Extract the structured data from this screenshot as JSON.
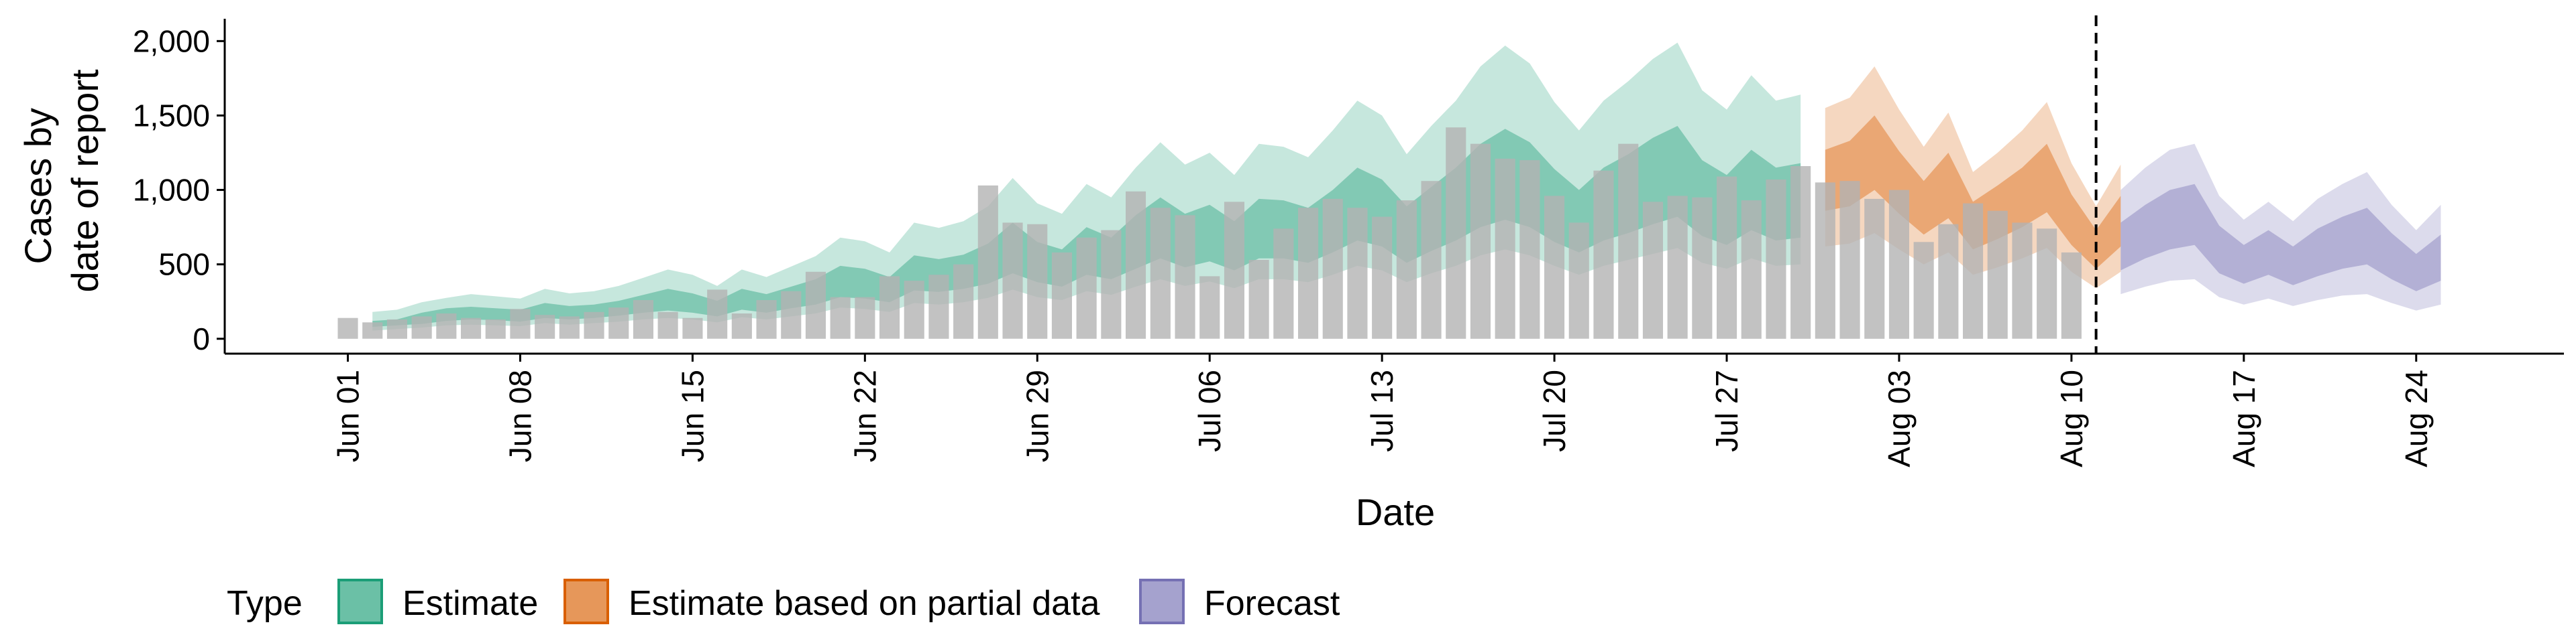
{
  "chart_data": {
    "type": "bar",
    "xlabel": "Date",
    "ylabel_lines": [
      "Cases by",
      "date of report"
    ],
    "ylim": [
      -100,
      2150
    ],
    "y_ticks": [
      0,
      500,
      1000,
      1500,
      2000
    ],
    "y_tick_labels": [
      "0",
      "500",
      "1,000",
      "1,500",
      "2,000"
    ],
    "x_ticks": [
      "2020-06-01",
      "2020-06-08",
      "2020-06-15",
      "2020-06-22",
      "2020-06-29",
      "2020-07-06",
      "2020-07-13",
      "2020-07-20",
      "2020-07-27",
      "2020-08-03",
      "2020-08-10",
      "2020-08-17",
      "2020-08-24"
    ],
    "x_tick_labels": [
      "Jun 01",
      "Jun 08",
      "Jun 15",
      "Jun 22",
      "Jun 29",
      "Jul 06",
      "Jul 13",
      "Jul 20",
      "Jul 27",
      "Aug 03",
      "Aug 10",
      "Aug 17",
      "Aug 24"
    ],
    "xlim": [
      "2020-05-27",
      "2020-08-30"
    ],
    "vline_date": "2020-08-11",
    "grid": false,
    "legend": {
      "position": "bottom",
      "title": "Type",
      "items": [
        {
          "label": "Estimate",
          "color": "#1B9E77"
        },
        {
          "label": "Estimate based on partial data",
          "color": "#D95F02"
        },
        {
          "label": "Forecast",
          "color": "#7570B3"
        }
      ]
    },
    "reported_cases": {
      "start_date": "2020-06-01",
      "color": "#b3b3b3",
      "values": [
        140,
        110,
        130,
        150,
        170,
        140,
        130,
        200,
        160,
        150,
        180,
        210,
        260,
        180,
        140,
        330,
        170,
        260,
        320,
        450,
        280,
        280,
        420,
        390,
        430,
        500,
        1030,
        780,
        770,
        580,
        680,
        730,
        990,
        880,
        830,
        420,
        920,
        530,
        740,
        880,
        940,
        880,
        820,
        930,
        1060,
        1420,
        1310,
        1210,
        1200,
        960,
        780,
        1130,
        1310,
        920,
        960,
        950,
        1090,
        930,
        1070,
        1160,
        1050,
        1060,
        940,
        1000,
        650,
        770,
        910,
        860,
        780,
        740,
        580
      ]
    },
    "series": [
      {
        "name": "Estimate",
        "color": "#1B9E77",
        "start_date": "2020-06-02",
        "median": [
          100,
          110,
          140,
          160,
          170,
          165,
          155,
          190,
          175,
          185,
          205,
          235,
          265,
          245,
          200,
          265,
          235,
          275,
          315,
          390,
          375,
          330,
          445,
          425,
          450,
          510,
          620,
          520,
          470,
          600,
          540,
          660,
          760,
          670,
          720,
          630,
          750,
          740,
          700,
          800,
          920,
          860,
          710,
          820,
          920,
          1050,
          1130,
          1060,
          910,
          800,
          920,
          990,
          1080,
          1150,
          960,
          880,
          1020,
          920,
          940
        ],
        "ci50_low": [
          80,
          90,
          100,
          120,
          130,
          125,
          115,
          140,
          130,
          140,
          155,
          175,
          190,
          175,
          150,
          195,
          175,
          205,
          230,
          280,
          270,
          245,
          325,
          315,
          335,
          370,
          440,
          380,
          350,
          430,
          400,
          470,
          540,
          480,
          520,
          460,
          540,
          540,
          510,
          580,
          660,
          620,
          510,
          590,
          660,
          750,
          800,
          750,
          650,
          580,
          660,
          710,
          770,
          820,
          690,
          630,
          730,
          660,
          680
        ],
        "ci50_high": [
          120,
          130,
          175,
          205,
          215,
          205,
          195,
          240,
          220,
          230,
          255,
          295,
          335,
          305,
          255,
          335,
          300,
          350,
          400,
          490,
          470,
          415,
          560,
          535,
          565,
          640,
          780,
          650,
          600,
          750,
          680,
          830,
          950,
          840,
          900,
          790,
          940,
          930,
          880,
          1000,
          1150,
          1070,
          890,
          1020,
          1150,
          1310,
          1410,
          1320,
          1140,
          1000,
          1150,
          1240,
          1350,
          1430,
          1200,
          1100,
          1270,
          1150,
          1180
        ],
        "ci90_low": [
          55,
          65,
          75,
          90,
          95,
          90,
          85,
          105,
          95,
          105,
          115,
          130,
          140,
          130,
          110,
          145,
          130,
          150,
          170,
          210,
          200,
          180,
          240,
          230,
          245,
          275,
          330,
          280,
          260,
          320,
          295,
          350,
          400,
          355,
          385,
          340,
          400,
          400,
          380,
          430,
          490,
          460,
          380,
          440,
          490,
          560,
          600,
          560,
          490,
          430,
          490,
          530,
          570,
          610,
          510,
          470,
          540,
          490,
          500
        ],
        "ci90_high": [
          180,
          195,
          245,
          275,
          300,
          285,
          270,
          335,
          305,
          320,
          355,
          410,
          465,
          430,
          355,
          465,
          415,
          485,
          555,
          680,
          655,
          580,
          780,
          745,
          790,
          890,
          1080,
          910,
          840,
          1040,
          950,
          1150,
          1320,
          1170,
          1250,
          1100,
          1310,
          1290,
          1220,
          1400,
          1600,
          1500,
          1240,
          1430,
          1600,
          1830,
          1970,
          1850,
          1590,
          1400,
          1600,
          1730,
          1880,
          1990,
          1670,
          1540,
          1770,
          1600,
          1640
        ]
      },
      {
        "name": "Estimate based on partial data",
        "color": "#D95F02",
        "start_date": "2020-07-31",
        "median": [
          1050,
          1100,
          1250,
          1050,
          880,
          1030,
          760,
          850,
          950,
          1080,
          800,
          600,
          790
        ],
        "ci50_low": [
          860,
          890,
          1000,
          840,
          700,
          810,
          600,
          670,
          750,
          850,
          630,
          470,
          620
        ],
        "ci50_high": [
          1270,
          1330,
          1500,
          1260,
          1060,
          1250,
          920,
          1030,
          1150,
          1310,
          970,
          730,
          960
        ],
        "ci90_low": [
          620,
          640,
          710,
          600,
          500,
          580,
          430,
          480,
          540,
          610,
          450,
          340,
          450
        ],
        "ci90_high": [
          1550,
          1620,
          1830,
          1540,
          1290,
          1520,
          1120,
          1250,
          1400,
          1590,
          1180,
          890,
          1170
        ]
      },
      {
        "name": "Forecast",
        "color": "#7570B3",
        "start_date": "2020-08-12",
        "median": [
          620,
          720,
          800,
          830,
          600,
          500,
          580,
          490,
          580,
          650,
          700,
          560,
          450,
          550
        ],
        "ci50_low": [
          460,
          540,
          600,
          630,
          440,
          370,
          430,
          360,
          420,
          470,
          500,
          400,
          320,
          390
        ],
        "ci50_high": [
          780,
          900,
          1000,
          1040,
          760,
          630,
          730,
          620,
          740,
          820,
          880,
          710,
          570,
          700
        ],
        "ci90_low": [
          300,
          350,
          390,
          400,
          280,
          230,
          270,
          220,
          260,
          290,
          300,
          240,
          190,
          230
        ],
        "ci90_high": [
          1000,
          1150,
          1270,
          1310,
          960,
          800,
          920,
          790,
          940,
          1040,
          1120,
          900,
          730,
          900
        ]
      }
    ]
  }
}
